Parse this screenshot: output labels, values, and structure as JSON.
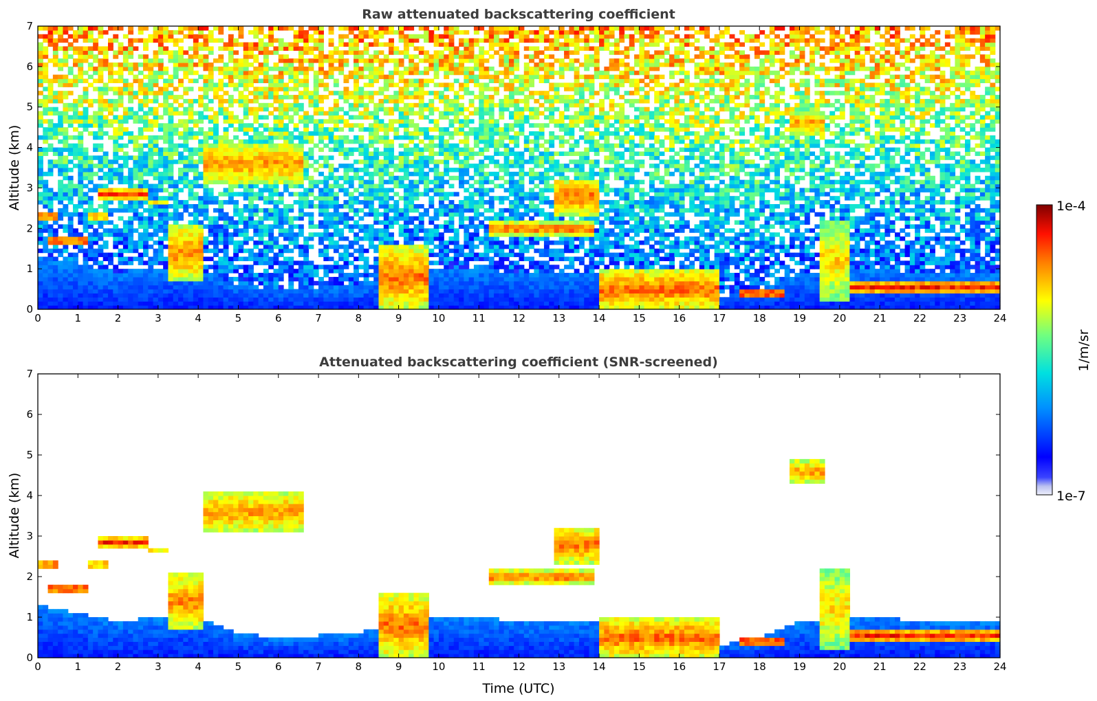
{
  "chart_data": [
    {
      "type": "heatmap",
      "title": "Raw attenuated backscattering coefficient",
      "xlabel": "",
      "ylabel": "Altitude (km)",
      "xlim": [
        0,
        24
      ],
      "ylim": [
        0,
        7
      ],
      "xticks": [
        "0",
        "1",
        "2",
        "3",
        "4",
        "5",
        "6",
        "7",
        "8",
        "9",
        "10",
        "11",
        "12",
        "13",
        "14",
        "15",
        "16",
        "17",
        "18",
        "19",
        "20",
        "21",
        "22",
        "23",
        "24"
      ],
      "yticks": [
        "0",
        "1",
        "2",
        "3",
        "4",
        "5",
        "6",
        "7"
      ],
      "screened": false
    },
    {
      "type": "heatmap",
      "title": "Attenuated backscattering coefficient (SNR-screened)",
      "xlabel": "Time (UTC)",
      "ylabel": "Altitude (km)",
      "xlim": [
        0,
        24
      ],
      "ylim": [
        0,
        7
      ],
      "xticks": [
        "0",
        "1",
        "2",
        "3",
        "4",
        "5",
        "6",
        "7",
        "8",
        "9",
        "10",
        "11",
        "12",
        "13",
        "14",
        "15",
        "16",
        "17",
        "18",
        "19",
        "20",
        "21",
        "22",
        "23",
        "24"
      ],
      "yticks": [
        "0",
        "1",
        "2",
        "3",
        "4",
        "5",
        "6",
        "7"
      ],
      "screened": true
    }
  ],
  "colorbar": {
    "label": "1/m/sr",
    "min_label": "1e-7",
    "max_label": "1e-4",
    "scale": "log",
    "range": [
      1e-07,
      0.0001
    ]
  },
  "features": {
    "boundary_layer": [
      [
        0,
        1.3
      ],
      [
        1,
        1.1
      ],
      [
        2,
        0.9
      ],
      [
        3,
        1.0
      ],
      [
        4,
        1.0
      ],
      [
        5,
        0.6
      ],
      [
        6,
        0.5
      ],
      [
        7,
        0.55
      ],
      [
        8,
        0.6
      ],
      [
        9,
        0.9
      ],
      [
        10,
        1.0
      ],
      [
        11,
        1.0
      ],
      [
        12,
        0.9
      ],
      [
        13,
        0.85
      ],
      [
        14,
        0.9
      ],
      [
        15,
        0.5
      ],
      [
        16,
        0.4
      ],
      [
        17,
        0.3
      ],
      [
        18,
        0.5
      ],
      [
        19,
        0.9
      ],
      [
        20,
        1.0
      ],
      [
        21,
        1.0
      ],
      [
        22,
        0.9
      ],
      [
        23,
        0.85
      ],
      [
        24,
        0.9
      ]
    ],
    "layers": [
      {
        "x": [
          0.0,
          0.5
        ],
        "alt": 2.3,
        "thick": 0.15,
        "level": 0.92
      },
      {
        "x": [
          0.3,
          1.3
        ],
        "alt": 1.7,
        "thick": 0.2,
        "level": 0.92
      },
      {
        "x": [
          1.2,
          1.7
        ],
        "alt": 2.3,
        "thick": 0.12,
        "level": 0.9
      },
      {
        "x": [
          1.5,
          2.8
        ],
        "alt": 2.85,
        "thick": 0.25,
        "level": 0.88
      },
      {
        "x": [
          2.8,
          3.3
        ],
        "alt": 2.6,
        "thick": 0.1,
        "level": 0.9
      },
      {
        "x": [
          3.2,
          4.1
        ],
        "alt": 1.4,
        "thick": 1.4,
        "level": 0.8
      },
      {
        "x": [
          4.1,
          6.6
        ],
        "alt": 3.6,
        "thick": 1.1,
        "level": 0.78
      },
      {
        "x": [
          8.5,
          9.8
        ],
        "alt": 0.8,
        "thick": 1.6,
        "level": 0.82
      },
      {
        "x": [
          11.2,
          13.9
        ],
        "alt": 2.0,
        "thick": 0.3,
        "level": 0.85
      },
      {
        "x": [
          12.9,
          14.0
        ],
        "alt": 2.8,
        "thick": 0.9,
        "level": 0.82
      },
      {
        "x": [
          14.0,
          17.0
        ],
        "alt": 0.5,
        "thick": 1.0,
        "level": 0.83
      },
      {
        "x": [
          17.5,
          18.6
        ],
        "alt": 0.4,
        "thick": 0.25,
        "level": 0.92
      },
      {
        "x": [
          18.7,
          19.6
        ],
        "alt": 4.6,
        "thick": 0.6,
        "level": 0.78
      },
      {
        "x": [
          19.5,
          20.2
        ],
        "alt": 1.2,
        "thick": 2.0,
        "level": 0.72
      },
      {
        "x": [
          20.2,
          24.0
        ],
        "alt": 0.55,
        "thick": 0.35,
        "level": 0.88
      }
    ]
  }
}
